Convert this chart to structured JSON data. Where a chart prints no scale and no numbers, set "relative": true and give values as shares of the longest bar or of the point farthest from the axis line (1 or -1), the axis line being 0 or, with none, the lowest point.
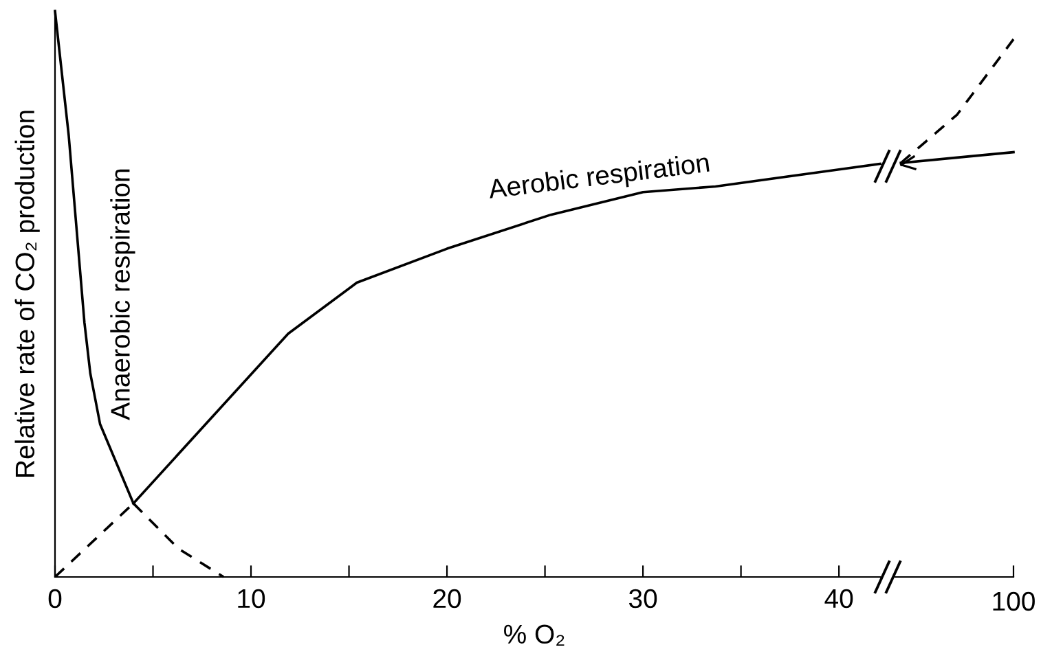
{
  "chart_data": [
    {
      "type": "line",
      "relative": true,
      "xlabel": "% O₂",
      "ylabel": "Relative rate of CO₂ production",
      "xlim": [
        0,
        42.1
      ],
      "xticks": [
        0,
        {
          "value": 5,
          "label": null
        },
        10,
        {
          "value": 15,
          "label": null
        },
        20,
        {
          "value": 25,
          "label": null
        },
        30,
        {
          "value": 35,
          "label": null
        },
        40
      ],
      "tick_labels": "x",
      "grid": false,
      "legend": false,
      "marker": "none",
      "series": [
        {
          "color": "#000000",
          "line_style": "solid",
          "x": [
            0,
            0.7,
            1.5,
            1.8,
            2.3,
            4.0
          ],
          "values": [
            1.0,
            0.78,
            0.45,
            0.36,
            0.27,
            0.13
          ]
        },
        {
          "color": "#000000",
          "line_style": "dashed",
          "x": [
            4.0,
            6.3,
            8.6
          ],
          "values": [
            0.13,
            0.05,
            0
          ]
        },
        {
          "color": "#000000",
          "line_style": "dashed",
          "x": [
            0,
            4.0
          ],
          "values": [
            0,
            0.13
          ]
        },
        {
          "color": "#000000",
          "line_style": "solid",
          "x": [
            4.0,
            11.9,
            15.4,
            20,
            25.3,
            30,
            33.7,
            40,
            42.1
          ],
          "values": [
            0.13,
            0.43,
            0.52,
            0.58,
            0.64,
            0.68,
            0.69,
            0.72,
            0.73
          ]
        }
      ],
      "annotations": [
        "Anaerobic respiration",
        "Aerobic respiration"
      ]
    },
    {
      "type": "line",
      "relative": true,
      "categories": [
        null,
        null,
        null
      ],
      "annotations": [
        "100"
      ],
      "tick_labels": "x",
      "grid": false,
      "legend": false,
      "marker": "none",
      "series": [
        {
          "color": "#000000",
          "line_style": "solid",
          "values": [
            0.77,
            0.78,
            0.79
          ]
        },
        {
          "color": "#000000",
          "line_style": "dashed",
          "values": [
            0.77,
            0.86,
            1.0
          ]
        }
      ]
    }
  ]
}
